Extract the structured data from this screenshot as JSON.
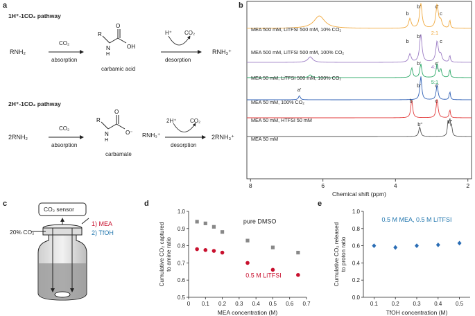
{
  "panels": {
    "a": "a",
    "b": "b",
    "c": "c",
    "d": "d",
    "e": "e"
  },
  "a": {
    "pathway1": {
      "title": "1H⁺-1CO₂ pathway",
      "reactant": "RNH₂",
      "arrow1_top": "CO₂",
      "arrow1_bottom": "absorption",
      "product_label": "carbamic acid",
      "arrow2_top_left": "H⁺",
      "arrow2_top_right": "CO₂",
      "arrow2_bottom": "desorption",
      "final": "RNH₃⁺"
    },
    "pathway2": {
      "title": "2H⁺-1CO₂ pathway",
      "reactant": "2RNH₂",
      "arrow1_top": "CO₂",
      "arrow1_bottom": "absorption",
      "product_label": "carbamate",
      "counter_ion": "RNH₃⁺",
      "arrow2_top_left": "2H⁺",
      "arrow2_top_right": "CO₂",
      "arrow2_bottom": "desorption",
      "final": "2RNH₃⁺"
    }
  },
  "b": {
    "xlabel": "Chemical shift (ppm)",
    "xticks": [
      "8",
      "6",
      "4",
      "2"
    ],
    "spectra": [
      {
        "label": "MEA 500 mM, LiTFSI 500 mM, 10% CO₂",
        "color": "#f0a83c",
        "ratio": "2:1"
      },
      {
        "label": "MEA 500 mM, LiTFSI 500 mM, 100% CO₂",
        "color": "#9b7bc4",
        "ratio": "4:1"
      },
      {
        "label": "MEA 50 mM, LiTFSI 500 mM, 100% CO₂",
        "color": "#2aa866",
        "ratio": "5:1"
      },
      {
        "label": "MEA 50 mM, 100% CO₂",
        "color": "#2e5fb5",
        "ratio": ""
      },
      {
        "label": "MEA 50 mM, HTFSI 50 mM",
        "color": "#e23a3a",
        "ratio": ""
      },
      {
        "label": "MEA 50 mM",
        "color": "#555555",
        "ratio": ""
      }
    ],
    "peak_labels": {
      "b": "b",
      "b_prime": "b′",
      "c": "c",
      "c_prime": "c′",
      "a_prime": "a′",
      "b_dprime": "b″",
      "c_dprime": "c″",
      "a": "a",
      "a_dprime": "a″"
    }
  },
  "c": {
    "sensor": "CO₂ sensor",
    "gas": "20% CO₂",
    "step1": "1) MEA",
    "step2": "2) TfOH",
    "step1_color": "#c8102e",
    "step2_color": "#2176ae"
  },
  "chart_data": [
    {
      "type": "scatter",
      "panel": "d",
      "ylabel": "Cumulative CO₂ captured to amine ratio",
      "xlabel": "MEA concentration (M)",
      "xlim": [
        0,
        0.7
      ],
      "ylim": [
        0.5,
        1.0
      ],
      "xticks": [
        "0",
        "0.1",
        "0.2",
        "0.3",
        "0.4",
        "0.5",
        "0.6",
        "0.7"
      ],
      "yticks": [
        "0.5",
        "0.6",
        "0.7",
        "0.8",
        "0.9",
        "1.0"
      ],
      "series": [
        {
          "name": "pure DMSO",
          "color": "#888888",
          "marker": "square",
          "x": [
            0.05,
            0.1,
            0.15,
            0.2,
            0.35,
            0.5,
            0.65
          ],
          "y": [
            0.94,
            0.93,
            0.91,
            0.88,
            0.83,
            0.79,
            0.76
          ]
        },
        {
          "name": "0.5 M LiTFSI",
          "color": "#c8102e",
          "marker": "circle",
          "x": [
            0.05,
            0.1,
            0.15,
            0.2,
            0.35,
            0.5,
            0.65
          ],
          "y": [
            0.78,
            0.775,
            0.77,
            0.76,
            0.7,
            0.66,
            0.63
          ]
        }
      ]
    },
    {
      "type": "scatter",
      "panel": "e",
      "title": "0.5 M MEA, 0.5 M LiTFSI",
      "title_color": "#2176ae",
      "ylabel": "Cumulative CO₂ released to proton ratio",
      "xlabel": "TfOH concentration (M)",
      "xlim": [
        0.05,
        0.55
      ],
      "ylim": [
        0.0,
        1.0
      ],
      "xticks": [
        "0.1",
        "0.2",
        "0.3",
        "0.4",
        "0.5"
      ],
      "yticks": [
        "0.0",
        "0.2",
        "0.4",
        "0.6",
        "0.8",
        "1.0"
      ],
      "series": [
        {
          "name": "released",
          "color": "#2a6db5",
          "marker": "diamond",
          "x": [
            0.1,
            0.2,
            0.3,
            0.4,
            0.5
          ],
          "y": [
            0.6,
            0.58,
            0.6,
            0.61,
            0.63
          ]
        }
      ]
    }
  ]
}
